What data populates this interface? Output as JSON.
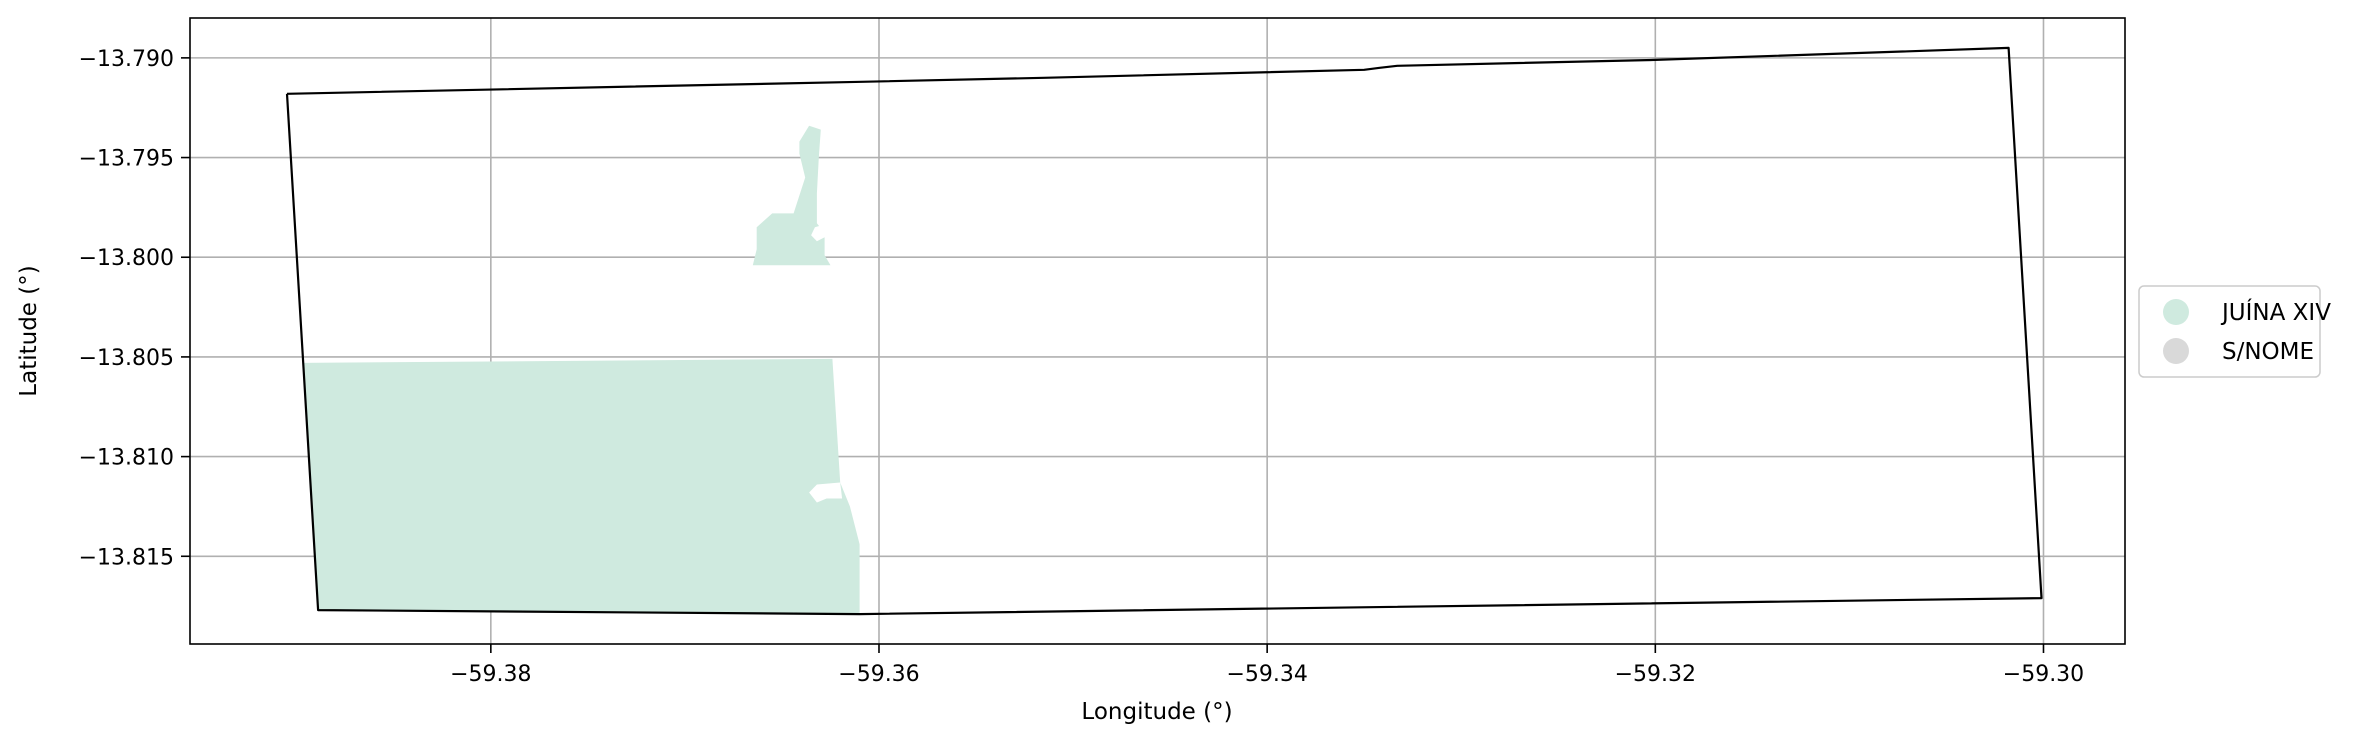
{
  "chart_data": {
    "type": "map",
    "xlabel": "Longitude (°)",
    "ylabel": "Latitude (°)",
    "xlim": [
      -59.3955,
      -59.2958
    ],
    "ylim": [
      -13.8194,
      -13.788
    ],
    "xticks": [
      -59.38,
      -59.36,
      -59.34,
      -59.32,
      -59.3
    ],
    "yticks": [
      -13.79,
      -13.795,
      -13.8,
      -13.805,
      -13.81,
      -13.815
    ],
    "xtick_labels": [
      "−59.38",
      "−59.36",
      "−59.34",
      "−59.32",
      "−59.30"
    ],
    "ytick_labels": [
      "−13.790",
      "−13.795",
      "−13.800",
      "−13.805",
      "−13.810",
      "−13.815"
    ],
    "grid": true,
    "legend": {
      "placement": "right-outside",
      "entries": [
        {
          "label": "JUÍNA XIV",
          "color": "#cfeadf"
        },
        {
          "label": "S/NOME",
          "color": "#d9d9d9"
        }
      ]
    },
    "boundary": {
      "name": "outline",
      "color": "#000000",
      "coords": [
        [
          -59.3905,
          -13.7918
        ],
        [
          -59.3609,
          -13.7912
        ],
        [
          -59.3515,
          -13.791
        ],
        [
          -59.335,
          -13.7906
        ],
        [
          -59.3342,
          -13.7905
        ],
        [
          -59.3333,
          -13.7904
        ],
        [
          -59.32,
          -13.7901
        ],
        [
          -59.3018,
          -13.7895
        ],
        [
          -59.3001,
          -13.8171
        ],
        [
          -59.361,
          -13.8179
        ],
        [
          -59.3889,
          -13.8177
        ],
        [
          -59.3905,
          -13.7918
        ]
      ]
    },
    "regions": [
      {
        "label": "JUÍNA XIV",
        "color": "#cfeadf",
        "coords": [
          [
            -59.3897,
            -13.8053
          ],
          [
            -59.3624,
            -13.8051
          ],
          [
            -59.362,
            -13.8113
          ],
          [
            -59.3615,
            -13.8125
          ],
          [
            -59.361,
            -13.8144
          ],
          [
            -59.361,
            -13.8179
          ],
          [
            -59.3889,
            -13.8177
          ],
          [
            -59.3897,
            -13.8053
          ]
        ]
      },
      {
        "label": "JUÍNA XIV",
        "color": "#cfeadf",
        "coords": [
          [
            -59.3665,
            -13.8004
          ],
          [
            -59.3625,
            -13.8004
          ],
          [
            -59.3628,
            -13.7999
          ],
          [
            -59.3628,
            -13.7988
          ],
          [
            -59.3632,
            -13.7983
          ],
          [
            -59.3632,
            -13.7968
          ],
          [
            -59.3631,
            -13.795
          ],
          [
            -59.363,
            -13.7936
          ],
          [
            -59.3636,
            -13.7934
          ],
          [
            -59.3641,
            -13.7942
          ],
          [
            -59.3641,
            -13.7948
          ],
          [
            -59.3638,
            -13.796
          ],
          [
            -59.3644,
            -13.7978
          ],
          [
            -59.3655,
            -13.7978
          ],
          [
            -59.3663,
            -13.7985
          ],
          [
            -59.3663,
            -13.7996
          ],
          [
            -59.3665,
            -13.8004
          ]
        ]
      }
    ]
  }
}
